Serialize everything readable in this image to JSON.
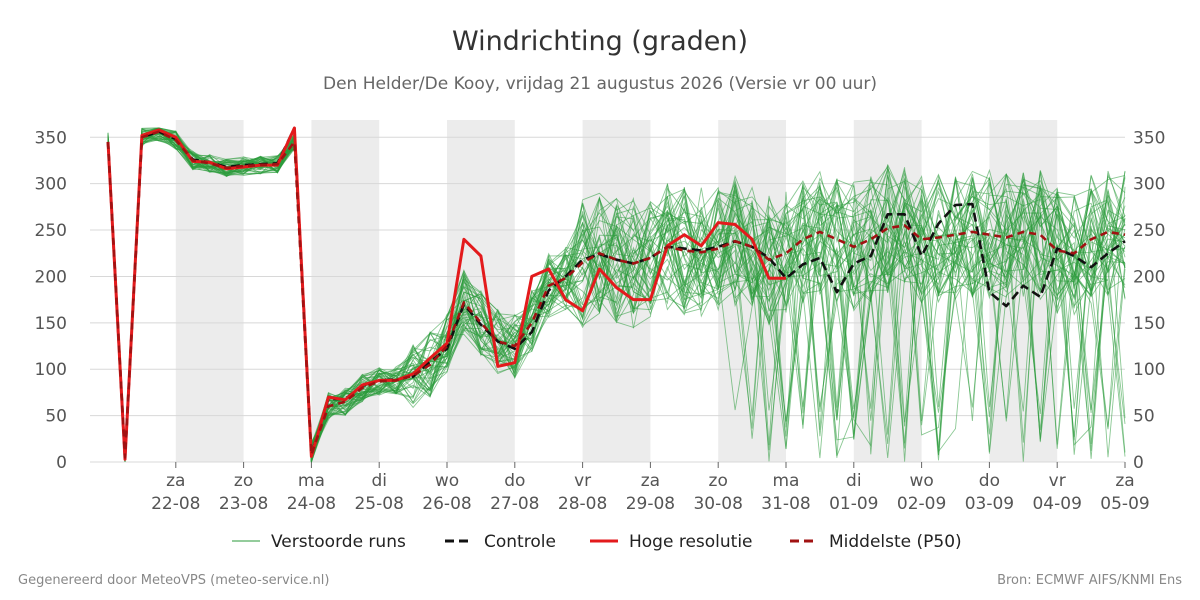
{
  "chart_data": {
    "type": "line",
    "title": "Windrichting (graden)",
    "subtitle": "Den Helder/De Kooy, vrijdag 21 augustus 2026 (Versie vr 00 uur)",
    "footer_left": "Gegenereerd door MeteoVPS (meteo-service.nl)",
    "footer_right": "Bron: ECMWF AIFS/KNMI Ens",
    "ylim": [
      0,
      360
    ],
    "yticks": [
      0,
      50,
      100,
      150,
      200,
      250,
      300,
      350
    ],
    "xlim": [
      0,
      15
    ],
    "xticks": [
      {
        "day": "za",
        "date": "22-08",
        "x": 1
      },
      {
        "day": "zo",
        "date": "23-08",
        "x": 2
      },
      {
        "day": "ma",
        "date": "24-08",
        "x": 3
      },
      {
        "day": "di",
        "date": "25-08",
        "x": 4
      },
      {
        "day": "wo",
        "date": "26-08",
        "x": 5
      },
      {
        "day": "do",
        "date": "27-08",
        "x": 6
      },
      {
        "day": "vr",
        "date": "28-08",
        "x": 7
      },
      {
        "day": "za",
        "date": "29-08",
        "x": 8
      },
      {
        "day": "zo",
        "date": "30-08",
        "x": 9
      },
      {
        "day": "ma",
        "date": "31-08",
        "x": 10
      },
      {
        "day": "di",
        "date": "01-09",
        "x": 11
      },
      {
        "day": "wo",
        "date": "02-09",
        "x": 12
      },
      {
        "day": "do",
        "date": "03-09",
        "x": 13
      },
      {
        "day": "vr",
        "date": "04-09",
        "x": 14
      },
      {
        "day": "za",
        "date": "05-09",
        "x": 15
      }
    ],
    "shaded_days": [
      [
        1,
        2
      ],
      [
        3,
        4
      ],
      [
        5,
        6
      ],
      [
        7,
        8
      ],
      [
        9,
        10
      ],
      [
        11,
        12
      ],
      [
        13,
        14
      ]
    ],
    "grid": true,
    "legend_position": "bottom",
    "series": [
      {
        "name": "Controle",
        "color": "#111111",
        "style": "dashed",
        "x": [
          0,
          0.25,
          0.5,
          0.75,
          1,
          1.25,
          1.5,
          1.75,
          2,
          2.25,
          2.5,
          2.75,
          3,
          3.25,
          3.5,
          3.75,
          4,
          4.25,
          4.5,
          4.75,
          5,
          5.25,
          5.5,
          5.75,
          6,
          6.25,
          6.5,
          6.75,
          7,
          7.25,
          7.5,
          7.75,
          8,
          8.25,
          8.5,
          8.75,
          9,
          9.25,
          9.5,
          9.75,
          10,
          10.25,
          10.5,
          10.75,
          11,
          11.25,
          11.5,
          11.75,
          12,
          12.25,
          12.5,
          12.75,
          13,
          13.25,
          13.5,
          13.75,
          14,
          14.25,
          14.5,
          14.75,
          15
        ],
        "y": [
          345,
          3,
          350,
          356,
          348,
          326,
          323,
          318,
          320,
          321,
          322,
          360,
          8,
          68,
          68,
          82,
          88,
          89,
          92,
          108,
          122,
          170,
          148,
          130,
          122,
          140,
          185,
          200,
          218,
          224,
          218,
          214,
          220,
          232,
          230,
          228,
          232,
          238,
          232,
          220,
          198,
          213,
          220,
          183,
          214,
          222,
          267,
          267,
          222,
          257,
          277,
          278,
          183,
          168,
          190,
          178,
          230,
          222,
          210,
          225,
          238
        ]
      },
      {
        "name": "Hoge resolutie",
        "color": "#e31a1c",
        "style": "solid",
        "x": [
          0,
          0.25,
          0.5,
          0.75,
          1,
          1.25,
          1.5,
          1.75,
          2,
          2.25,
          2.5,
          2.75,
          3,
          3.25,
          3.5,
          3.75,
          4,
          4.25,
          4.5,
          4.75,
          5,
          5.25,
          5.5,
          5.75,
          6,
          6.25,
          6.5,
          6.75,
          7,
          7.25,
          7.5,
          7.75,
          8,
          8.25,
          8.5,
          8.75,
          9,
          9.25,
          9.5,
          9.75,
          10
        ],
        "y": [
          345,
          3,
          352,
          358,
          350,
          324,
          323,
          316,
          318,
          320,
          320,
          360,
          6,
          70,
          67,
          83,
          88,
          88,
          95,
          112,
          128,
          240,
          222,
          103,
          107,
          200,
          208,
          175,
          163,
          208,
          188,
          175,
          175,
          233,
          245,
          233,
          258,
          256,
          240,
          198,
          198
        ]
      },
      {
        "name": "Middelste (P50)",
        "color": "#a11212",
        "style": "dashed",
        "x": [
          0,
          0.25,
          0.5,
          0.75,
          1,
          1.25,
          1.5,
          1.75,
          2,
          2.25,
          2.5,
          2.75,
          3,
          3.25,
          3.5,
          3.75,
          4,
          4.25,
          4.5,
          4.75,
          5,
          5.25,
          5.5,
          5.75,
          6,
          6.25,
          6.5,
          6.75,
          7,
          7.25,
          7.5,
          7.75,
          8,
          8.25,
          8.5,
          8.75,
          9,
          9.25,
          9.5,
          9.75,
          10,
          10.25,
          10.5,
          10.75,
          11,
          11.25,
          11.5,
          11.75,
          12,
          12.25,
          12.5,
          12.75,
          13,
          13.25,
          13.5,
          13.75,
          14,
          14.25,
          14.5,
          14.75,
          15
        ],
        "y": [
          345,
          5,
          350,
          356,
          347,
          325,
          322,
          317,
          319,
          320,
          321,
          345,
          8,
          60,
          65,
          80,
          87,
          88,
          93,
          105,
          125,
          172,
          150,
          130,
          125,
          150,
          190,
          198,
          215,
          225,
          218,
          214,
          220,
          232,
          228,
          226,
          230,
          238,
          232,
          218,
          225,
          240,
          248,
          240,
          232,
          240,
          252,
          255,
          240,
          242,
          245,
          248,
          245,
          242,
          248,
          245,
          228,
          225,
          240,
          248,
          245
        ]
      }
    ],
    "ensemble": {
      "name": "Verstoorde runs",
      "color": "#2a9a3a",
      "member_count": 50
    }
  }
}
